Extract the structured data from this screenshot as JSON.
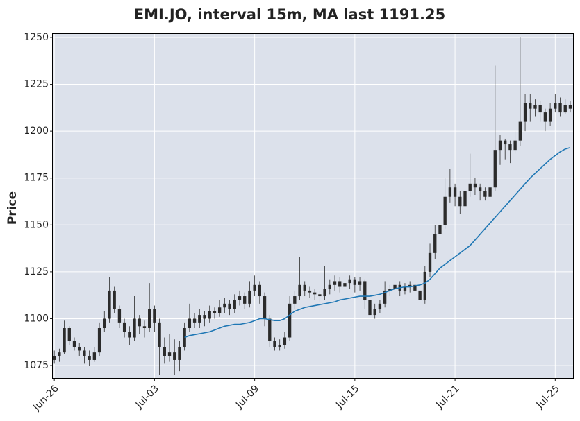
{
  "chart_data": {
    "type": "candlestick",
    "title": "EMI.JO, interval 15m, MA last 1191.25",
    "y_label": "Price",
    "xlim": [
      -0.3,
      103.7
    ],
    "xticks": [
      {
        "value": 0,
        "label": "Jun-26"
      },
      {
        "value": 20,
        "label": "Jul-03"
      },
      {
        "value": 40,
        "label": "Jul-09"
      },
      {
        "value": 60,
        "label": "Jul-15"
      },
      {
        "value": 80,
        "label": "Jul-21"
      },
      {
        "value": 100,
        "label": "Jul-25"
      }
    ],
    "ylim": [
      1068,
      1252.2
    ],
    "yticks": [
      1075,
      1100,
      1125,
      1150,
      1175,
      1200,
      1225,
      1250
    ],
    "grid": true,
    "color": "#2b2b2b",
    "open": [
      1078,
      1080,
      1082,
      1095,
      1088,
      1085,
      1083,
      1080,
      1078,
      1082,
      1095,
      1100,
      1115,
      1105,
      1098,
      1093,
      1090,
      1100,
      1096,
      1095,
      1105,
      1098,
      1085,
      1080,
      1082,
      1078,
      1085,
      1095,
      1100,
      1098,
      1102,
      1100,
      1104,
      1103,
      1106,
      1108,
      1105,
      1110,
      1112,
      1108,
      1115,
      1118,
      1112,
      1100,
      1088,
      1085,
      1086,
      1090,
      1108,
      1112,
      1118,
      1115,
      1114,
      1113,
      1112,
      1116,
      1118,
      1120,
      1117,
      1119,
      1121,
      1118,
      1120,
      1110,
      1102,
      1105,
      1108,
      1115,
      1116,
      1118,
      1115,
      1117,
      1118,
      1115,
      1110,
      1125,
      1135,
      1145,
      1150,
      1165,
      1170,
      1165,
      1160,
      1168,
      1172,
      1170,
      1168,
      1165,
      1170,
      1190,
      1195,
      1193,
      1190,
      1195,
      1205,
      1215,
      1212,
      1214,
      1210,
      1205,
      1212,
      1215,
      1210,
      1214
    ],
    "high": [
      1083,
      1084,
      1099,
      1096,
      1090,
      1087,
      1085,
      1083,
      1085,
      1098,
      1104,
      1122,
      1117,
      1107,
      1100,
      1096,
      1112,
      1102,
      1099,
      1119,
      1107,
      1100,
      1090,
      1092,
      1089,
      1088,
      1098,
      1108,
      1103,
      1105,
      1104,
      1107,
      1106,
      1110,
      1111,
      1110,
      1113,
      1115,
      1114,
      1120,
      1123,
      1120,
      1114,
      1102,
      1090,
      1089,
      1093,
      1112,
      1115,
      1133,
      1120,
      1117,
      1116,
      1115,
      1128,
      1121,
      1123,
      1122,
      1122,
      1123,
      1122,
      1122,
      1121,
      1112,
      1108,
      1110,
      1120,
      1118,
      1125,
      1120,
      1119,
      1120,
      1120,
      1117,
      1128,
      1140,
      1150,
      1158,
      1175,
      1180,
      1172,
      1168,
      1178,
      1188,
      1175,
      1172,
      1170,
      1185,
      1235,
      1198,
      1196,
      1195,
      1200,
      1250,
      1220,
      1220,
      1217,
      1216,
      1212,
      1215,
      1220,
      1218,
      1217,
      1216
    ],
    "low": [
      1076,
      1077,
      1081,
      1086,
      1083,
      1080,
      1076,
      1075,
      1077,
      1080,
      1093,
      1098,
      1103,
      1095,
      1090,
      1086,
      1088,
      1092,
      1090,
      1093,
      1093,
      1070,
      1076,
      1077,
      1070,
      1072,
      1083,
      1093,
      1095,
      1095,
      1096,
      1098,
      1100,
      1101,
      1103,
      1102,
      1103,
      1107,
      1105,
      1106,
      1112,
      1108,
      1096,
      1085,
      1083,
      1083,
      1084,
      1088,
      1105,
      1110,
      1112,
      1111,
      1110,
      1109,
      1110,
      1113,
      1115,
      1114,
      1115,
      1116,
      1114,
      1115,
      1105,
      1099,
      1100,
      1103,
      1106,
      1112,
      1114,
      1112,
      1113,
      1114,
      1112,
      1103,
      1108,
      1122,
      1132,
      1142,
      1148,
      1162,
      1160,
      1156,
      1158,
      1165,
      1166,
      1163,
      1163,
      1163,
      1168,
      1182,
      1185,
      1183,
      1188,
      1192,
      1200,
      1205,
      1208,
      1205,
      1200,
      1203,
      1210,
      1208,
      1209,
      1210
    ],
    "close": [
      1080,
      1082,
      1095,
      1088,
      1085,
      1083,
      1080,
      1078,
      1082,
      1095,
      1100,
      1115,
      1105,
      1098,
      1093,
      1090,
      1100,
      1096,
      1095,
      1105,
      1098,
      1085,
      1080,
      1082,
      1078,
      1085,
      1095,
      1100,
      1098,
      1102,
      1100,
      1104,
      1103,
      1106,
      1108,
      1105,
      1110,
      1112,
      1108,
      1115,
      1118,
      1112,
      1100,
      1088,
      1085,
      1086,
      1090,
      1108,
      1112,
      1118,
      1115,
      1114,
      1113,
      1112,
      1116,
      1118,
      1120,
      1117,
      1119,
      1121,
      1118,
      1120,
      1110,
      1102,
      1105,
      1108,
      1115,
      1116,
      1118,
      1115,
      1117,
      1118,
      1115,
      1110,
      1125,
      1135,
      1145,
      1150,
      1165,
      1170,
      1165,
      1160,
      1168,
      1172,
      1170,
      1168,
      1165,
      1170,
      1190,
      1195,
      1193,
      1190,
      1195,
      1205,
      1215,
      1212,
      1214,
      1210,
      1205,
      1212,
      1215,
      1210,
      1214,
      1212
    ],
    "ma": {
      "color": "#1f77b4",
      "values": [
        null,
        null,
        null,
        null,
        null,
        null,
        null,
        null,
        null,
        null,
        null,
        null,
        null,
        null,
        null,
        null,
        null,
        null,
        null,
        null,
        null,
        null,
        null,
        null,
        null,
        null,
        1090,
        1091,
        1091.5,
        1092,
        1092.5,
        1093,
        1094,
        1095,
        1096,
        1096.5,
        1097,
        1097,
        1097.5,
        1098,
        1099,
        1100,
        1100,
        1099.5,
        1099,
        1099,
        1100,
        1102,
        1104,
        1105,
        1106,
        1106.5,
        1107,
        1107.5,
        1108,
        1108.5,
        1109,
        1110,
        1110.5,
        1111,
        1111.5,
        1112,
        1112,
        1112,
        1112.5,
        1113,
        1114,
        1115,
        1116,
        1116.5,
        1117,
        1117,
        1117.5,
        1118,
        1119,
        1121,
        1124,
        1127,
        1129,
        1131,
        1133,
        1135,
        1137,
        1139,
        1142,
        1145,
        1148,
        1151,
        1154,
        1157,
        1160,
        1163,
        1166,
        1169,
        1172,
        1175,
        1177.5,
        1180,
        1182.5,
        1185,
        1187,
        1189,
        1190.5,
        1191.25
      ]
    }
  }
}
